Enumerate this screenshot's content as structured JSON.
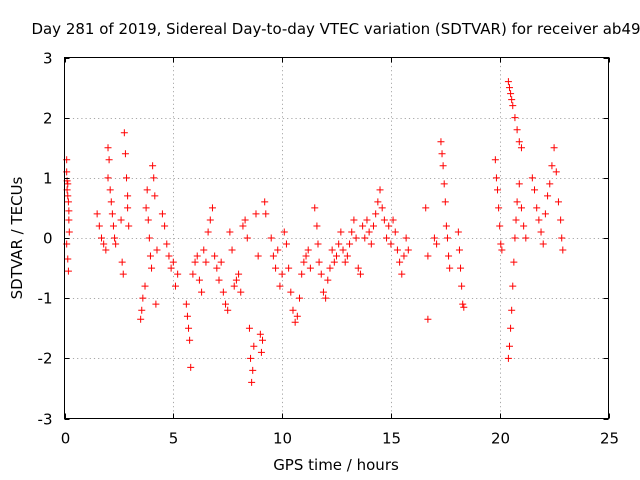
{
  "chart_data": {
    "type": "scatter",
    "title": "Day 281 of 2019, Sidereal Day-to-day VTEC variation (SDTVAR) for receiver ab49",
    "xlabel": "GPS time / hours",
    "ylabel": "SDTVAR / TECUs",
    "xlim": [
      0,
      25
    ],
    "ylim": [
      -3,
      3
    ],
    "xticks": [
      "0",
      "5",
      "10",
      "15",
      "20",
      "25"
    ],
    "yticks": [
      "-3",
      "-2",
      "-1",
      "0",
      "1",
      "2",
      "3"
    ],
    "grid": true,
    "marker": "plus",
    "series": [
      {
        "name": "SDTVAR",
        "color": "#ff0000",
        "points": [
          [
            0.1,
            1.3
          ],
          [
            0.1,
            1.1
          ],
          [
            0.12,
            0.95
          ],
          [
            0.15,
            0.9
          ],
          [
            0.15,
            0.7
          ],
          [
            0.18,
            0.6
          ],
          [
            0.2,
            0.45
          ],
          [
            0.2,
            0.3
          ],
          [
            0.22,
            0.1
          ],
          [
            0.1,
            -0.1
          ],
          [
            0.15,
            -0.35
          ],
          [
            0.18,
            -0.55
          ],
          [
            0.12,
            0.8
          ],
          [
            1.5,
            0.4
          ],
          [
            1.6,
            0.2
          ],
          [
            1.7,
            0.0
          ],
          [
            1.8,
            -0.1
          ],
          [
            1.9,
            -0.2
          ],
          [
            2.0,
            1.0
          ],
          [
            2.0,
            1.5
          ],
          [
            2.05,
            1.3
          ],
          [
            2.1,
            0.8
          ],
          [
            2.2,
            0.4
          ],
          [
            2.25,
            0.2
          ],
          [
            2.3,
            0.0
          ],
          [
            2.15,
            0.6
          ],
          [
            2.35,
            -0.1
          ],
          [
            2.6,
            0.3
          ],
          [
            2.65,
            -0.4
          ],
          [
            2.7,
            -0.6
          ],
          [
            2.75,
            1.75
          ],
          [
            2.8,
            1.4
          ],
          [
            2.85,
            1.0
          ],
          [
            2.9,
            0.7
          ],
          [
            2.9,
            0.5
          ],
          [
            2.95,
            0.2
          ],
          [
            3.5,
            -1.35
          ],
          [
            3.55,
            -1.2
          ],
          [
            3.6,
            -1.0
          ],
          [
            3.7,
            -0.8
          ],
          [
            3.75,
            0.5
          ],
          [
            3.8,
            0.8
          ],
          [
            3.85,
            0.3
          ],
          [
            3.9,
            0.0
          ],
          [
            3.95,
            -0.3
          ],
          [
            4.0,
            -0.5
          ],
          [
            4.05,
            1.2
          ],
          [
            4.1,
            1.0
          ],
          [
            4.15,
            0.7
          ],
          [
            4.2,
            -1.1
          ],
          [
            4.25,
            -0.2
          ],
          [
            4.5,
            0.4
          ],
          [
            4.6,
            0.2
          ],
          [
            4.7,
            -0.1
          ],
          [
            4.8,
            -0.3
          ],
          [
            4.9,
            -0.5
          ],
          [
            5.0,
            -0.4
          ],
          [
            5.1,
            -0.8
          ],
          [
            5.2,
            -0.6
          ],
          [
            5.6,
            -1.1
          ],
          [
            5.65,
            -1.3
          ],
          [
            5.7,
            -1.5
          ],
          [
            5.75,
            -1.7
          ],
          [
            5.8,
            -2.15
          ],
          [
            5.9,
            -0.6
          ],
          [
            6.0,
            -0.4
          ],
          [
            6.1,
            -0.3
          ],
          [
            6.2,
            -0.7
          ],
          [
            6.3,
            -0.9
          ],
          [
            6.4,
            -0.2
          ],
          [
            6.5,
            -0.4
          ],
          [
            6.6,
            0.1
          ],
          [
            6.7,
            0.3
          ],
          [
            6.8,
            0.5
          ],
          [
            6.9,
            -0.3
          ],
          [
            7.0,
            -0.5
          ],
          [
            7.1,
            -0.7
          ],
          [
            7.2,
            -0.4
          ],
          [
            7.3,
            -0.9
          ],
          [
            7.4,
            -1.1
          ],
          [
            7.5,
            -1.2
          ],
          [
            7.6,
            0.1
          ],
          [
            7.7,
            -0.2
          ],
          [
            7.8,
            -0.8
          ],
          [
            7.9,
            -0.7
          ],
          [
            8.0,
            -0.6
          ],
          [
            8.1,
            -0.9
          ],
          [
            8.2,
            0.2
          ],
          [
            8.3,
            0.3
          ],
          [
            8.4,
            0.0
          ],
          [
            8.5,
            -1.5
          ],
          [
            8.55,
            -2.0
          ],
          [
            8.6,
            -2.4
          ],
          [
            8.65,
            -2.2
          ],
          [
            8.7,
            -1.8
          ],
          [
            8.8,
            0.4
          ],
          [
            8.9,
            -0.3
          ],
          [
            9.0,
            -1.6
          ],
          [
            9.05,
            -1.9
          ],
          [
            9.1,
            -1.7
          ],
          [
            9.2,
            0.6
          ],
          [
            9.25,
            0.4
          ],
          [
            9.5,
            0.0
          ],
          [
            9.6,
            -0.3
          ],
          [
            9.7,
            -0.5
          ],
          [
            9.8,
            -0.2
          ],
          [
            9.9,
            -0.8
          ],
          [
            10.0,
            -0.6
          ],
          [
            10.1,
            0.1
          ],
          [
            10.2,
            -0.1
          ],
          [
            10.3,
            -0.5
          ],
          [
            10.4,
            -0.9
          ],
          [
            10.5,
            -1.2
          ],
          [
            10.6,
            -1.4
          ],
          [
            10.7,
            -1.3
          ],
          [
            10.8,
            -1.0
          ],
          [
            10.9,
            -0.6
          ],
          [
            11.0,
            -0.4
          ],
          [
            11.1,
            -0.3
          ],
          [
            11.2,
            -0.2
          ],
          [
            11.3,
            -0.5
          ],
          [
            11.5,
            0.5
          ],
          [
            11.6,
            0.2
          ],
          [
            11.65,
            -0.1
          ],
          [
            11.7,
            -0.4
          ],
          [
            11.8,
            -0.6
          ],
          [
            11.9,
            -0.9
          ],
          [
            12.0,
            -1.0
          ],
          [
            12.1,
            -0.7
          ],
          [
            12.2,
            -0.5
          ],
          [
            12.3,
            -0.2
          ],
          [
            12.4,
            -0.4
          ],
          [
            12.5,
            -0.3
          ],
          [
            12.6,
            -0.1
          ],
          [
            12.7,
            0.1
          ],
          [
            12.8,
            -0.2
          ],
          [
            12.9,
            -0.4
          ],
          [
            13.0,
            -0.3
          ],
          [
            13.1,
            -0.1
          ],
          [
            13.2,
            0.1
          ],
          [
            13.3,
            0.3
          ],
          [
            13.4,
            0.0
          ],
          [
            13.5,
            -0.5
          ],
          [
            13.6,
            -0.6
          ],
          [
            13.7,
            0.2
          ],
          [
            13.8,
            0.0
          ],
          [
            13.9,
            0.3
          ],
          [
            14.0,
            0.1
          ],
          [
            14.1,
            -0.1
          ],
          [
            14.2,
            0.2
          ],
          [
            14.3,
            0.4
          ],
          [
            14.4,
            0.6
          ],
          [
            14.5,
            0.8
          ],
          [
            14.6,
            0.5
          ],
          [
            14.7,
            0.3
          ],
          [
            14.8,
            0.0
          ],
          [
            14.9,
            0.2
          ],
          [
            15.0,
            -0.1
          ],
          [
            15.1,
            0.3
          ],
          [
            15.2,
            0.1
          ],
          [
            15.3,
            -0.2
          ],
          [
            15.4,
            -0.4
          ],
          [
            15.5,
            -0.6
          ],
          [
            15.6,
            -0.3
          ],
          [
            15.7,
            0.0
          ],
          [
            15.8,
            -0.2
          ],
          [
            16.6,
            0.5
          ],
          [
            16.7,
            -0.3
          ],
          [
            16.7,
            -1.35
          ],
          [
            17.0,
            0.0
          ],
          [
            17.1,
            -0.1
          ],
          [
            17.3,
            1.6
          ],
          [
            17.35,
            1.4
          ],
          [
            17.4,
            1.2
          ],
          [
            17.45,
            0.9
          ],
          [
            17.5,
            0.6
          ],
          [
            17.55,
            0.2
          ],
          [
            17.6,
            0.0
          ],
          [
            17.65,
            -0.3
          ],
          [
            17.7,
            -0.5
          ],
          [
            18.1,
            0.1
          ],
          [
            18.15,
            -0.2
          ],
          [
            18.2,
            -0.5
          ],
          [
            18.25,
            -0.8
          ],
          [
            18.3,
            -1.1
          ],
          [
            18.35,
            -1.15
          ],
          [
            19.8,
            1.3
          ],
          [
            19.85,
            1.0
          ],
          [
            19.9,
            0.8
          ],
          [
            19.95,
            0.5
          ],
          [
            20.0,
            0.2
          ],
          [
            20.05,
            -0.1
          ],
          [
            20.1,
            -0.2
          ],
          [
            20.4,
            2.6
          ],
          [
            20.45,
            2.5
          ],
          [
            20.5,
            2.4
          ],
          [
            20.55,
            2.3
          ],
          [
            20.6,
            2.2
          ],
          [
            20.7,
            2.0
          ],
          [
            20.8,
            1.8
          ],
          [
            20.9,
            1.6
          ],
          [
            21.0,
            1.5
          ],
          [
            20.4,
            -2.0
          ],
          [
            20.45,
            -1.8
          ],
          [
            20.5,
            -1.5
          ],
          [
            20.55,
            -1.2
          ],
          [
            20.6,
            -0.8
          ],
          [
            20.65,
            -0.4
          ],
          [
            20.7,
            0.0
          ],
          [
            20.75,
            0.3
          ],
          [
            20.8,
            0.6
          ],
          [
            20.9,
            0.9
          ],
          [
            21.0,
            0.5
          ],
          [
            21.1,
            0.2
          ],
          [
            21.2,
            0.0
          ],
          [
            21.5,
            1.0
          ],
          [
            21.6,
            0.8
          ],
          [
            21.7,
            0.5
          ],
          [
            21.8,
            0.3
          ],
          [
            21.9,
            0.1
          ],
          [
            22.0,
            -0.1
          ],
          [
            22.1,
            0.4
          ],
          [
            22.2,
            0.7
          ],
          [
            22.3,
            0.9
          ],
          [
            22.4,
            1.2
          ],
          [
            22.5,
            1.5
          ],
          [
            22.6,
            1.1
          ],
          [
            22.7,
            0.6
          ],
          [
            22.8,
            0.3
          ],
          [
            22.85,
            0.0
          ],
          [
            22.9,
            -0.2
          ]
        ]
      }
    ]
  }
}
